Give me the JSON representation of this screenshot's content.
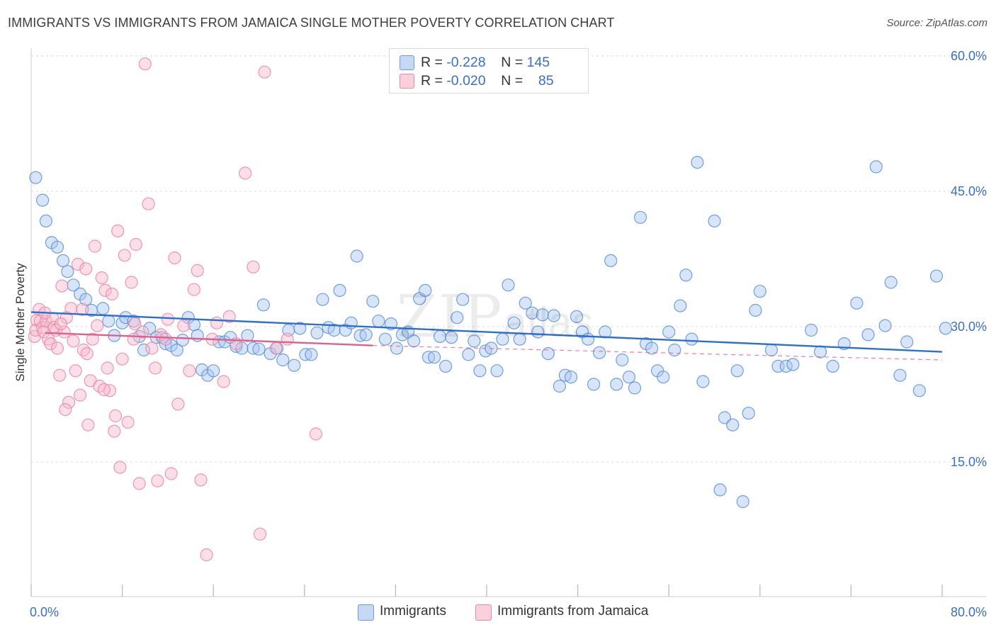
{
  "title": "IMMIGRANTS VS IMMIGRANTS FROM JAMAICA SINGLE MOTHER POVERTY CORRELATION CHART",
  "source": "Source: ZipAtlas.com",
  "watermark": {
    "main": "ZIP",
    "sub": "atlas"
  },
  "legend_top": [
    {
      "r_label": "R = ",
      "r_value": "-0.228",
      "n_label": "N = ",
      "n_value": "145",
      "color": "#a8c6f0"
    },
    {
      "r_label": "R = ",
      "r_value": "-0.020",
      "n_label": "N = ",
      "n_value": "85",
      "color": "#f6b8cb"
    }
  ],
  "legend_bottom": [
    {
      "label": "Immigrants",
      "color": "#a8c6f0"
    },
    {
      "label": "Immigrants from Jamaica",
      "color": "#f6b8cb"
    }
  ],
  "chart_data": {
    "type": "scatter",
    "title": "IMMIGRANTS VS IMMIGRANTS FROM JAMAICA SINGLE MOTHER POVERTY CORRELATION CHART",
    "xlabel": "",
    "ylabel": "Single Mother Poverty",
    "xlim": [
      0,
      80
    ],
    "ylim": [
      0,
      62
    ],
    "x_tick_labels": [
      "0.0%",
      "80.0%"
    ],
    "y_ticks": [
      15,
      30,
      45,
      60
    ],
    "y_tick_labels": [
      "15.0%",
      "30.0%",
      "45.0%",
      "60.0%"
    ],
    "grid": true,
    "legend_placement": "top-center",
    "series": [
      {
        "name": "Immigrants",
        "color": "#5a8fd8",
        "fill": "#a8c6f0",
        "trend": {
          "x": [
            0,
            80
          ],
          "y": [
            31.6,
            27.2
          ],
          "color": "#2f6fcf"
        },
        "points": [
          [
            0.4,
            46.5
          ],
          [
            1.0,
            44.0
          ],
          [
            1.3,
            41.7
          ],
          [
            1.8,
            39.3
          ],
          [
            2.3,
            38.8
          ],
          [
            2.8,
            37.3
          ],
          [
            3.2,
            36.1
          ],
          [
            3.7,
            34.6
          ],
          [
            4.3,
            33.6
          ],
          [
            4.8,
            33.0
          ],
          [
            5.3,
            31.8
          ],
          [
            6.3,
            32.0
          ],
          [
            6.8,
            30.6
          ],
          [
            7.3,
            29.0
          ],
          [
            8.0,
            30.4
          ],
          [
            8.3,
            31.0
          ],
          [
            9.0,
            30.6
          ],
          [
            9.5,
            28.9
          ],
          [
            9.9,
            27.4
          ],
          [
            10.4,
            29.8
          ],
          [
            11.0,
            28.8
          ],
          [
            11.5,
            28.8
          ],
          [
            11.8,
            28.1
          ],
          [
            12.3,
            27.9
          ],
          [
            12.8,
            27.4
          ],
          [
            13.3,
            28.5
          ],
          [
            13.8,
            31.0
          ],
          [
            14.3,
            30.2
          ],
          [
            14.6,
            29.0
          ],
          [
            15.0,
            25.2
          ],
          [
            15.5,
            24.6
          ],
          [
            16.0,
            25.1
          ],
          [
            16.5,
            28.3
          ],
          [
            17.0,
            28.3
          ],
          [
            17.5,
            28.8
          ],
          [
            18.0,
            27.8
          ],
          [
            18.5,
            27.6
          ],
          [
            19.0,
            29.0
          ],
          [
            19.5,
            27.6
          ],
          [
            20.0,
            27.5
          ],
          [
            20.4,
            32.4
          ],
          [
            21.0,
            27.0
          ],
          [
            21.6,
            27.6
          ],
          [
            22.1,
            26.3
          ],
          [
            22.6,
            29.6
          ],
          [
            23.1,
            25.7
          ],
          [
            23.6,
            29.8
          ],
          [
            24.1,
            26.9
          ],
          [
            24.6,
            26.9
          ],
          [
            25.1,
            29.3
          ],
          [
            25.6,
            33.0
          ],
          [
            26.1,
            29.9
          ],
          [
            26.6,
            29.6
          ],
          [
            27.1,
            34.0
          ],
          [
            27.6,
            29.6
          ],
          [
            28.1,
            30.4
          ],
          [
            28.6,
            37.8
          ],
          [
            28.9,
            29.0
          ],
          [
            29.4,
            29.1
          ],
          [
            30.0,
            32.8
          ],
          [
            30.5,
            30.6
          ],
          [
            31.1,
            28.6
          ],
          [
            31.6,
            30.3
          ],
          [
            32.1,
            27.6
          ],
          [
            32.6,
            29.1
          ],
          [
            33.1,
            29.4
          ],
          [
            33.6,
            28.4
          ],
          [
            34.1,
            33.1
          ],
          [
            34.6,
            34.0
          ],
          [
            34.9,
            26.6
          ],
          [
            35.4,
            26.6
          ],
          [
            35.9,
            28.9
          ],
          [
            36.4,
            25.6
          ],
          [
            36.9,
            28.8
          ],
          [
            37.4,
            31.0
          ],
          [
            37.9,
            33.0
          ],
          [
            38.4,
            26.9
          ],
          [
            38.9,
            28.4
          ],
          [
            39.4,
            25.1
          ],
          [
            39.9,
            27.3
          ],
          [
            40.4,
            27.6
          ],
          [
            40.9,
            25.1
          ],
          [
            41.4,
            28.6
          ],
          [
            41.9,
            34.6
          ],
          [
            42.4,
            30.4
          ],
          [
            42.9,
            28.6
          ],
          [
            43.4,
            32.6
          ],
          [
            44.0,
            31.5
          ],
          [
            44.5,
            29.4
          ],
          [
            44.9,
            31.3
          ],
          [
            45.4,
            27.0
          ],
          [
            45.9,
            31.2
          ],
          [
            46.4,
            23.4
          ],
          [
            46.9,
            24.6
          ],
          [
            47.4,
            24.4
          ],
          [
            47.9,
            31.1
          ],
          [
            48.4,
            29.4
          ],
          [
            48.9,
            28.6
          ],
          [
            49.4,
            23.6
          ],
          [
            49.9,
            27.1
          ],
          [
            50.4,
            29.4
          ],
          [
            50.9,
            37.3
          ],
          [
            51.4,
            23.6
          ],
          [
            51.9,
            26.3
          ],
          [
            52.5,
            24.4
          ],
          [
            53.0,
            23.2
          ],
          [
            53.5,
            42.1
          ],
          [
            54.0,
            28.1
          ],
          [
            54.5,
            27.6
          ],
          [
            55.0,
            25.1
          ],
          [
            55.5,
            24.4
          ],
          [
            56.0,
            29.4
          ],
          [
            56.5,
            27.4
          ],
          [
            57.0,
            32.3
          ],
          [
            57.5,
            35.7
          ],
          [
            58.0,
            28.6
          ],
          [
            58.5,
            48.2
          ],
          [
            59.0,
            23.9
          ],
          [
            60.0,
            41.7
          ],
          [
            60.5,
            11.9
          ],
          [
            60.9,
            19.9
          ],
          [
            61.6,
            19.1
          ],
          [
            62.0,
            25.1
          ],
          [
            62.5,
            10.6
          ],
          [
            63.0,
            20.4
          ],
          [
            63.6,
            31.8
          ],
          [
            64.0,
            33.9
          ],
          [
            65.0,
            27.4
          ],
          [
            65.6,
            25.6
          ],
          [
            66.3,
            25.6
          ],
          [
            66.9,
            25.8
          ],
          [
            68.5,
            29.6
          ],
          [
            69.3,
            27.2
          ],
          [
            70.4,
            25.6
          ],
          [
            71.4,
            28.1
          ],
          [
            72.5,
            32.6
          ],
          [
            73.5,
            29.1
          ],
          [
            74.2,
            47.7
          ],
          [
            75.0,
            30.1
          ],
          [
            75.5,
            34.9
          ],
          [
            76.3,
            24.6
          ],
          [
            76.9,
            28.3
          ],
          [
            78.0,
            22.9
          ],
          [
            79.5,
            35.6
          ],
          [
            80.3,
            29.8
          ]
        ]
      },
      {
        "name": "Immigrants from Jamaica",
        "color": "#e887a6",
        "fill": "#f6b8cb",
        "trend": {
          "x": [
            0,
            30
          ],
          "y": [
            29.3,
            27.9
          ],
          "color": "#e0608c",
          "dashed_extension_to": [
            80,
            26.3
          ]
        },
        "points": [
          [
            0.3,
            28.9
          ],
          [
            0.4,
            29.6
          ],
          [
            0.5,
            30.7
          ],
          [
            0.7,
            31.9
          ],
          [
            0.8,
            30.6
          ],
          [
            1.0,
            29.9
          ],
          [
            1.1,
            29.4
          ],
          [
            1.3,
            30.6
          ],
          [
            1.5,
            28.6
          ],
          [
            1.7,
            28.1
          ],
          [
            1.9,
            30.9
          ],
          [
            2.0,
            29.9
          ],
          [
            2.2,
            29.6
          ],
          [
            2.3,
            27.6
          ],
          [
            2.5,
            24.6
          ],
          [
            2.7,
            34.5
          ],
          [
            2.9,
            29.4
          ],
          [
            3.1,
            31.0
          ],
          [
            3.3,
            21.6
          ],
          [
            3.5,
            32.0
          ],
          [
            3.7,
            28.4
          ],
          [
            3.9,
            25.1
          ],
          [
            4.1,
            36.9
          ],
          [
            4.3,
            22.4
          ],
          [
            4.5,
            31.9
          ],
          [
            4.6,
            27.4
          ],
          [
            4.8,
            36.4
          ],
          [
            5.0,
            19.1
          ],
          [
            5.2,
            24.0
          ],
          [
            5.4,
            28.6
          ],
          [
            5.6,
            38.9
          ],
          [
            5.8,
            30.1
          ],
          [
            6.0,
            23.4
          ],
          [
            6.2,
            35.4
          ],
          [
            6.5,
            34.0
          ],
          [
            6.7,
            25.4
          ],
          [
            6.9,
            22.9
          ],
          [
            7.1,
            33.6
          ],
          [
            7.3,
            18.4
          ],
          [
            7.6,
            40.6
          ],
          [
            7.8,
            14.4
          ],
          [
            8.0,
            26.4
          ],
          [
            8.2,
            37.9
          ],
          [
            8.5,
            19.4
          ],
          [
            8.8,
            34.9
          ],
          [
            9.0,
            28.6
          ],
          [
            9.2,
            39.1
          ],
          [
            9.5,
            12.6
          ],
          [
            9.8,
            29.4
          ],
          [
            10.0,
            59.1
          ],
          [
            10.3,
            43.6
          ],
          [
            10.6,
            27.6
          ],
          [
            10.9,
            25.4
          ],
          [
            11.1,
            12.9
          ],
          [
            11.4,
            29.1
          ],
          [
            11.8,
            28.6
          ],
          [
            12.3,
            13.7
          ],
          [
            12.6,
            37.6
          ],
          [
            12.9,
            21.4
          ],
          [
            13.4,
            30.1
          ],
          [
            13.9,
            25.1
          ],
          [
            14.3,
            34.1
          ],
          [
            14.6,
            36.2
          ],
          [
            14.9,
            13.0
          ],
          [
            15.4,
            4.7
          ],
          [
            15.9,
            28.6
          ],
          [
            16.3,
            30.4
          ],
          [
            16.9,
            23.9
          ],
          [
            17.4,
            31.1
          ],
          [
            18.0,
            28.1
          ],
          [
            18.8,
            47.0
          ],
          [
            19.5,
            36.6
          ],
          [
            20.1,
            7.0
          ],
          [
            20.5,
            58.2
          ],
          [
            21.5,
            27.6
          ],
          [
            22.5,
            28.6
          ],
          [
            25.0,
            18.1
          ],
          [
            3.0,
            20.8
          ],
          [
            6.4,
            23.0
          ],
          [
            1.2,
            31.5
          ],
          [
            2.6,
            30.3
          ],
          [
            4.9,
            27.0
          ],
          [
            7.4,
            20.1
          ],
          [
            9.1,
            30.3
          ],
          [
            12.0,
            30.8
          ]
        ]
      }
    ]
  }
}
